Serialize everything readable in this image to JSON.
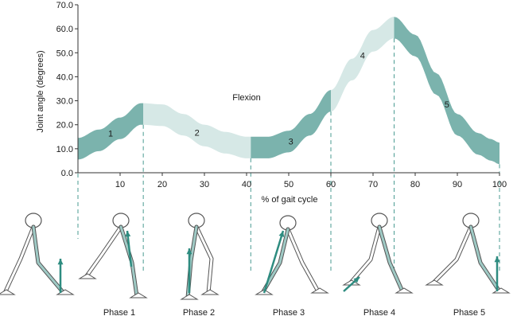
{
  "chart_data": {
    "type": "area",
    "title": "",
    "xlabel": "% of gait cycle",
    "ylabel": "Joint angle (degrees)",
    "xlim": [
      0,
      100
    ],
    "ylim": [
      0,
      70
    ],
    "x_ticks": [
      10,
      20,
      30,
      40,
      50,
      60,
      70,
      80,
      90,
      100
    ],
    "y_ticks": [
      "0.0",
      "10.0",
      "20.0",
      "30.0",
      "40.0",
      "50.0",
      "60.0",
      "70.0"
    ],
    "annotation": "Flexion",
    "band_colors": {
      "dark": "#7bb3ad",
      "light": "#d6e8e6"
    },
    "band_thickness_deg": 9,
    "centerline": {
      "x": [
        0,
        5,
        10,
        15,
        20,
        25,
        30,
        35,
        40,
        45,
        50,
        55,
        60,
        65,
        70,
        75,
        80,
        85,
        90,
        95,
        98,
        100
      ],
      "y": [
        10,
        13.5,
        18.5,
        24.5,
        24,
        20,
        15.5,
        12.5,
        10.5,
        10.5,
        13,
        20,
        30,
        43,
        55,
        60.5,
        53,
        37,
        20,
        12,
        9.5,
        8
      ]
    },
    "phases": [
      {
        "label": "1",
        "band_label": "1",
        "start": 0,
        "end": 15.5,
        "shade": "dark",
        "phase_name": "Phase 1"
      },
      {
        "label": "2",
        "band_label": "2",
        "start": 15.5,
        "end": 41,
        "shade": "light",
        "phase_name": "Phase 2"
      },
      {
        "label": "3",
        "band_label": "3",
        "start": 41,
        "end": 60,
        "shade": "dark",
        "phase_name": "Phase 3"
      },
      {
        "label": "4",
        "band_label": "4",
        "start": 60,
        "end": 75,
        "shade": "light",
        "phase_name": "Phase 4"
      },
      {
        "label": "5",
        "band_label": "5",
        "start": 75,
        "end": 100,
        "shade": "dark",
        "phase_name": "Phase 5"
      }
    ],
    "phase_boundaries": [
      15.5,
      41,
      60,
      75,
      100
    ],
    "phase_labels": [
      "Phase 1",
      "Phase 2",
      "Phase 3",
      "Phase 4",
      "Phase 5"
    ],
    "grid": false
  },
  "figure_icon": "skeleton-leg-icon"
}
